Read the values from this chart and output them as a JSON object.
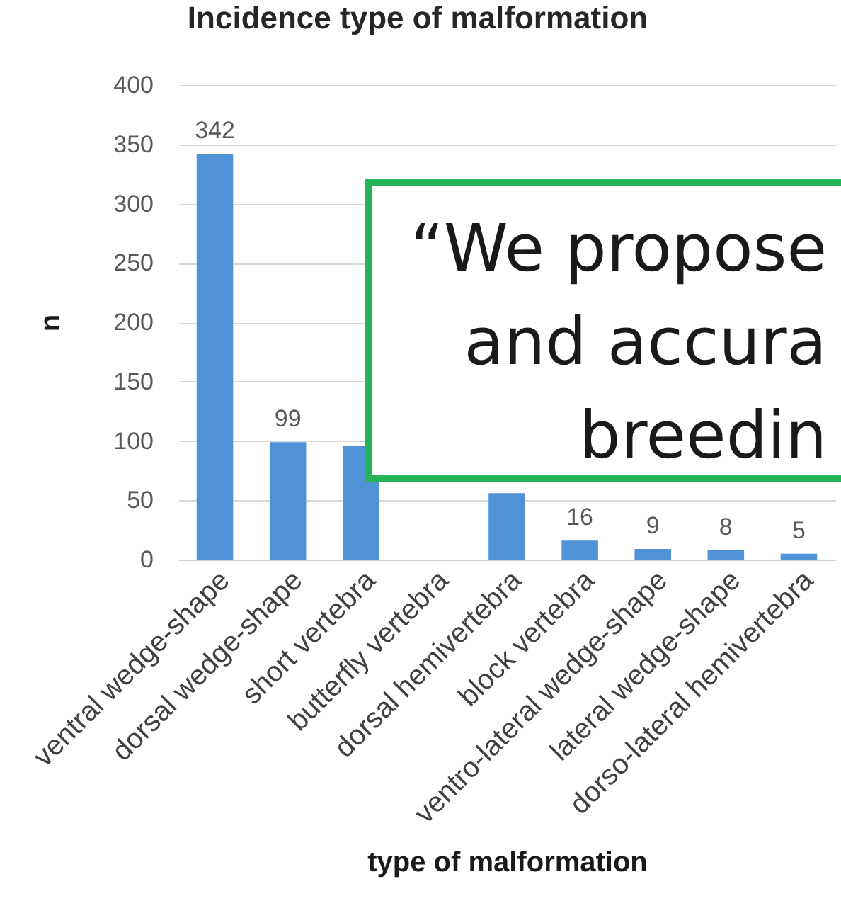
{
  "chart_data": {
    "type": "bar",
    "title": "Incidence type of malformation",
    "xlabel": "type of malformation",
    "ylabel": "n",
    "categories": [
      "ventral wedge-shape",
      "dorsal wedge-shape",
      "short vertebra",
      "butterfly vertebra",
      "dorsal hemivertebra",
      "block vertebra",
      "ventro-lateral wedge-shape",
      "lateral wedge-shape",
      "dorso-lateral hemivertebra"
    ],
    "values": [
      342,
      99,
      96,
      null,
      56,
      16,
      9,
      8,
      5
    ],
    "value_labels": [
      "342",
      "99",
      null,
      null,
      null,
      "16",
      "9",
      "8",
      "5"
    ],
    "color": "#4f92d6",
    "ylim": [
      0,
      400
    ],
    "yticks": [
      0,
      50,
      100,
      150,
      200,
      250,
      300,
      350,
      400
    ],
    "grid": "y",
    "annotations": [
      "“We propose",
      "and accura",
      "breedin"
    ]
  }
}
